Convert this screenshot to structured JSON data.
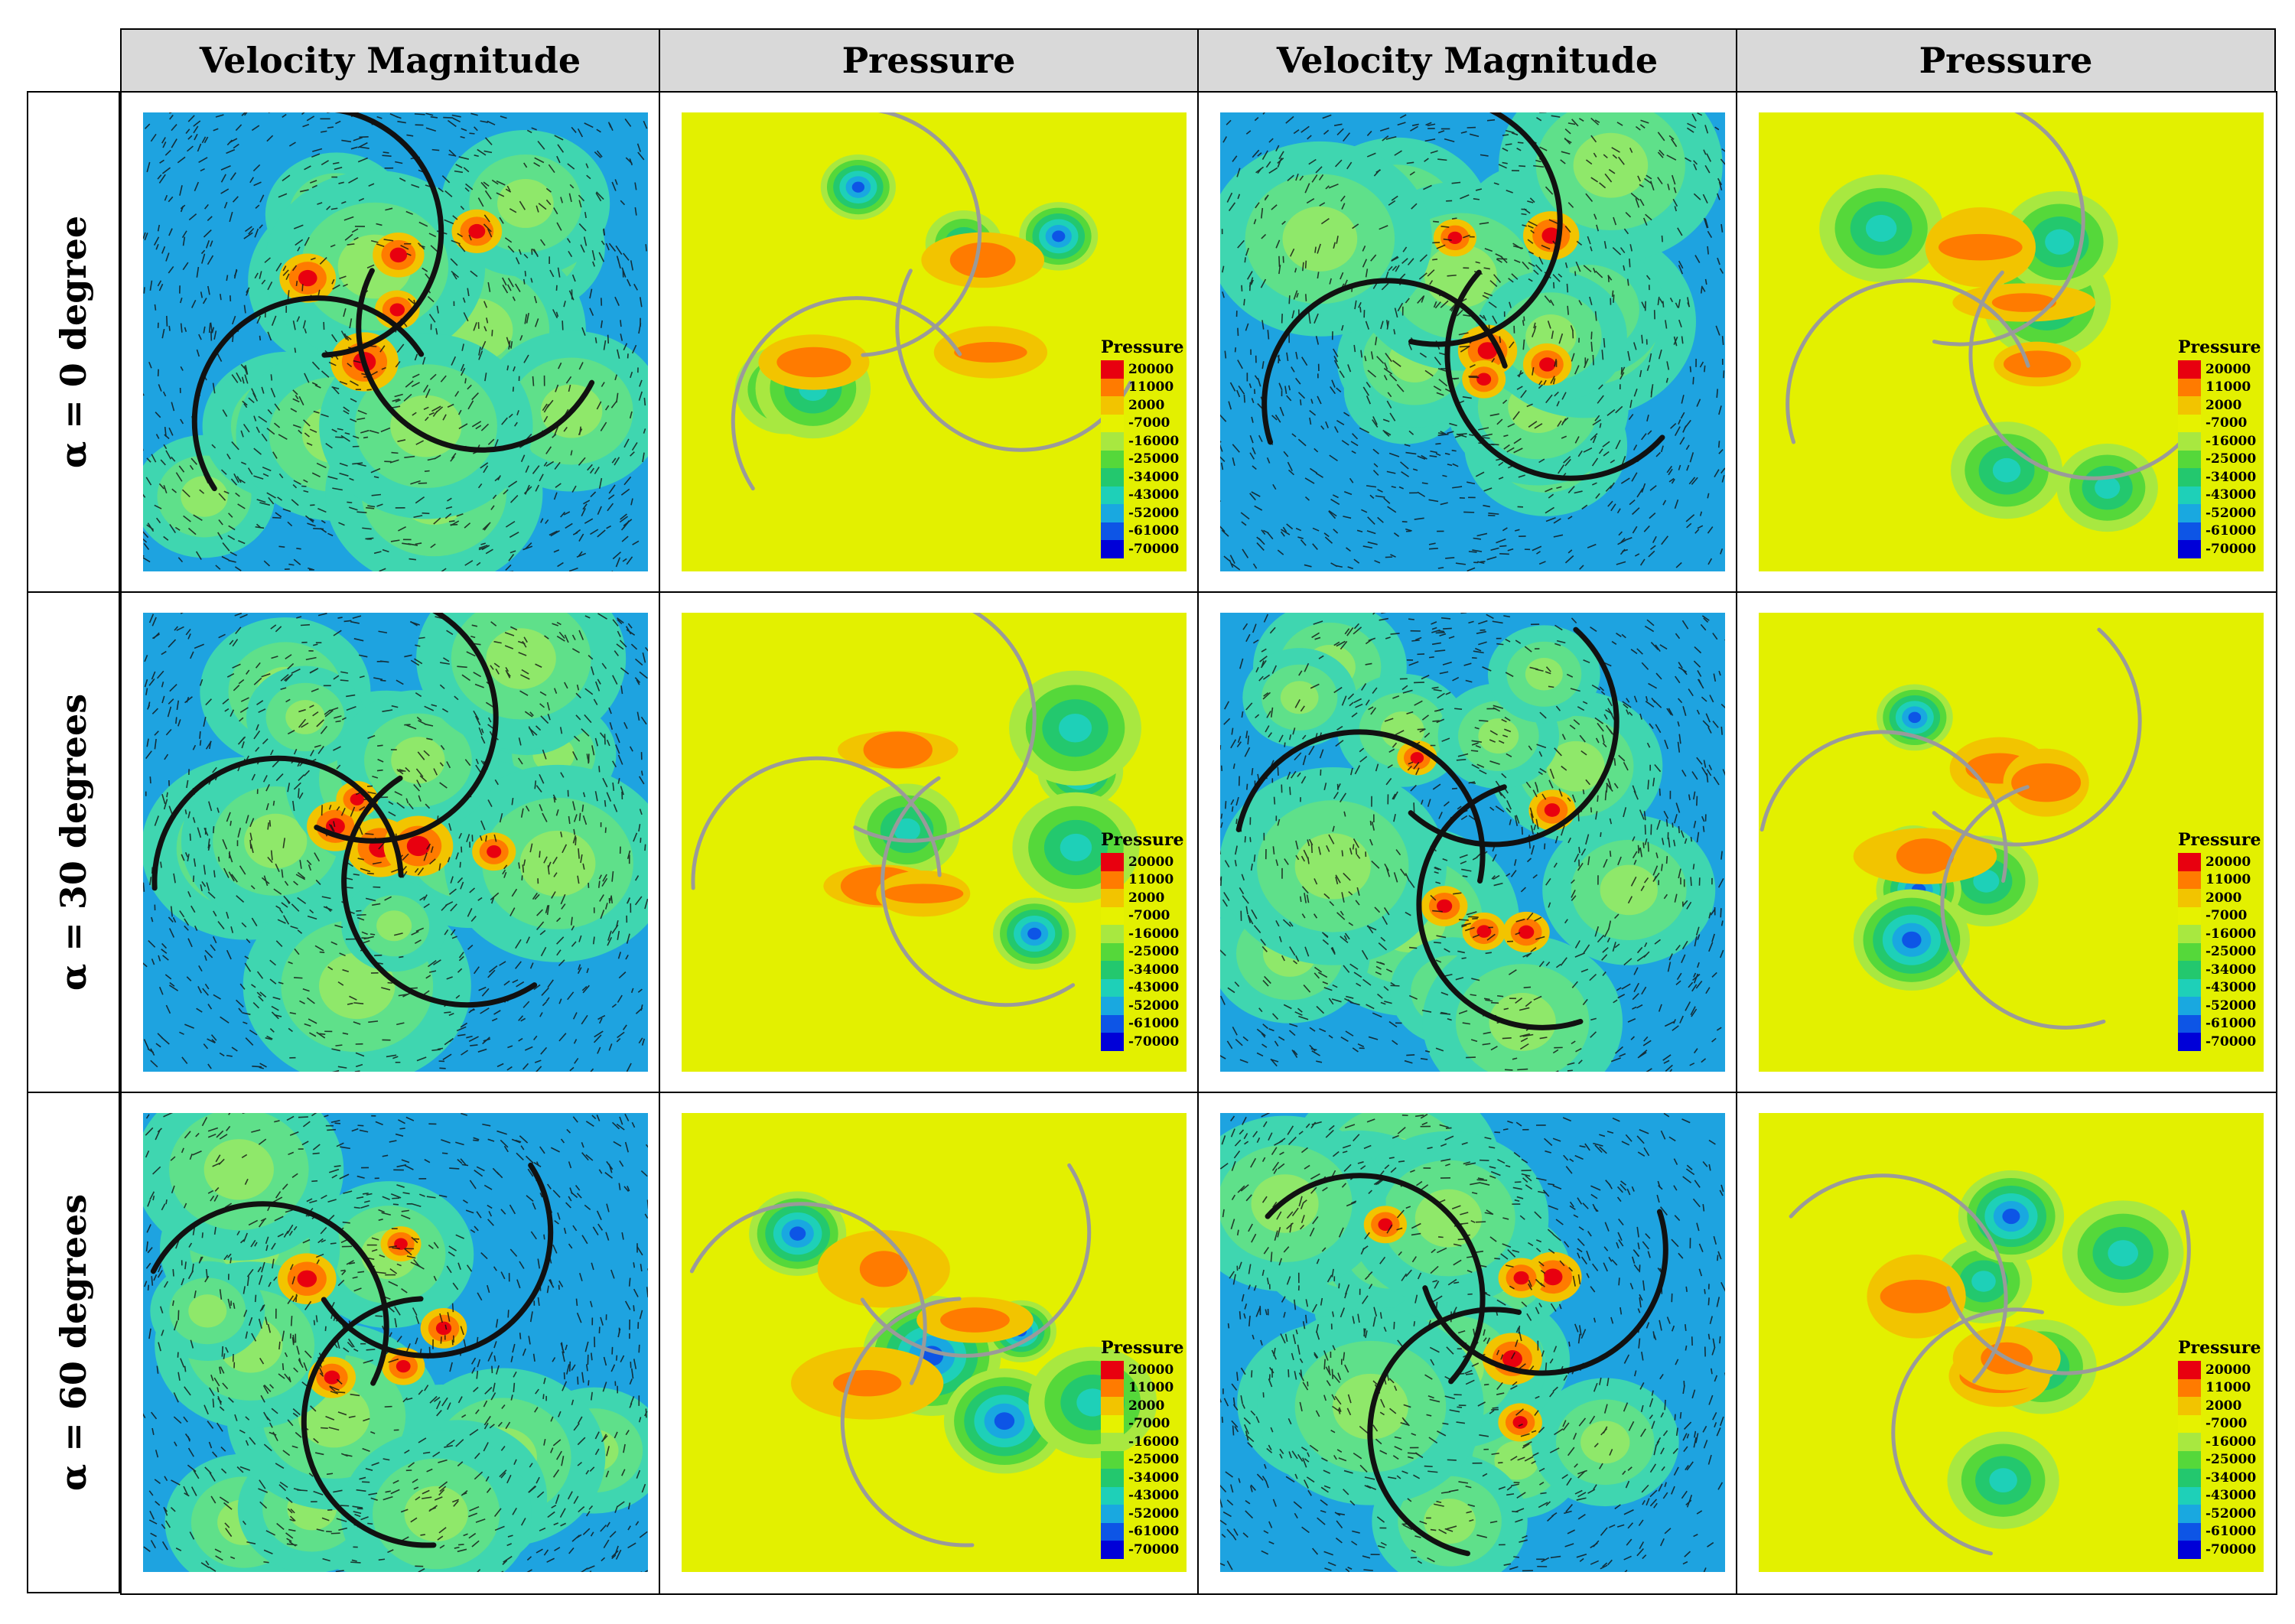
{
  "columns": [
    "Velocity Magnitude",
    "Pressure",
    "Velocity Magnitude",
    "Pressure"
  ],
  "rows": [
    "α = 0 degree",
    "α = 30 degrees",
    "α = 60 degrees"
  ],
  "legend": {
    "title": "Pressure",
    "levels": [
      "20000",
      "11000",
      "2000",
      "-7000",
      "-16000",
      "-25000",
      "-34000",
      "-43000",
      "-52000",
      "-61000",
      "-70000"
    ],
    "colors": [
      "#e8000f",
      "#ff7b00",
      "#f2c400",
      "#e6f200",
      "#a8e840",
      "#55d83a",
      "#23c86e",
      "#1ed0b8",
      "#19a8e0",
      "#0d55e6",
      "#0000d8"
    ]
  },
  "colors": {
    "velocity_background": "#1ea3e0",
    "pressure_background": "#e3f000",
    "header_fill": "#d9d9d9"
  }
}
